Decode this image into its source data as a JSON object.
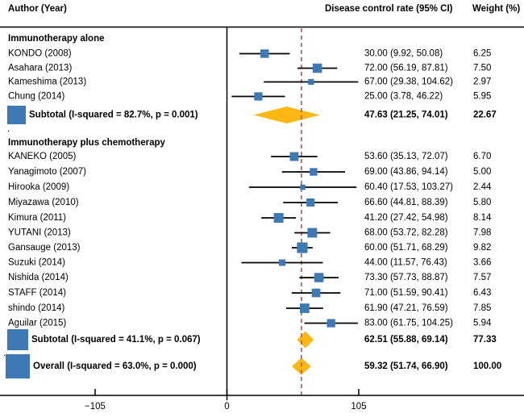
{
  "header": {
    "author": "Author (Year)",
    "effect": "Disease control rate (95% CI)",
    "weight": "Weight (%)"
  },
  "axis": {
    "tick_labels": [
      "−105",
      "0",
      "105"
    ],
    "tick_values": [
      -105,
      0,
      105
    ]
  },
  "colors": {
    "marker_blue": "#3d7ab5",
    "diamond_orange": "#fdb713",
    "reference_line_red": "#b65653",
    "line_black": "#000000"
  },
  "chart_data": {
    "type": "forest_plot",
    "effect_measure": "Disease control rate (95% CI)",
    "x_ticks": [
      -105,
      0,
      105
    ],
    "xlim_ticks": [
      -105,
      105
    ],
    "null_line_value": 0,
    "reference_line_value": 59.32,
    "legend_position": "none",
    "grid": false,
    "groups": [
      {
        "heading": "Immunotherapy alone",
        "separator": ".",
        "studies": [
          {
            "label": "KONDO (2008)",
            "effect": 30.0,
            "ci_low": 9.92,
            "ci_high": 50.08,
            "display": "30.00 (9.92, 50.08)",
            "weight": 6.25,
            "weight_display": "6.25"
          },
          {
            "label": "Asahara (2013)",
            "effect": 72.0,
            "ci_low": 56.19,
            "ci_high": 87.81,
            "display": "72.00 (56.19, 87.81)",
            "weight": 7.5,
            "weight_display": "7.50"
          },
          {
            "label": "Kameshima (2013)",
            "effect": 67.0,
            "ci_low": 29.38,
            "ci_high": 104.62,
            "display": "67.00 (29.38, 104.62)",
            "weight": 2.97,
            "weight_display": "2.97"
          },
          {
            "label": "Chung (2014)",
            "effect": 25.0,
            "ci_low": 3.78,
            "ci_high": 46.22,
            "display": "25.00 (3.78, 46.22)",
            "weight": 5.95,
            "weight_display": "5.95"
          }
        ],
        "subtotal": {
          "label": "Subtotal  (I-squared = 82.7%, p = 0.001)",
          "effect": 47.63,
          "ci_low": 21.25,
          "ci_high": 74.01,
          "display": "47.63 (21.25, 74.01)",
          "weight": 22.67,
          "weight_display": "22.67"
        }
      },
      {
        "heading": "Immunotherapy plus chemotherapy",
        "separator": ".",
        "studies": [
          {
            "label": "KANEKO (2005)",
            "effect": 53.6,
            "ci_low": 35.13,
            "ci_high": 72.07,
            "display": "53.60 (35.13, 72.07)",
            "weight": 6.7,
            "weight_display": "6.70"
          },
          {
            "label": "Yanagimoto (2007)",
            "effect": 69.0,
            "ci_low": 43.86,
            "ci_high": 94.14,
            "display": "69.00 (43.86, 94.14)",
            "weight": 5.0,
            "weight_display": "5.00"
          },
          {
            "label": "Hirooka (2009)",
            "effect": 60.4,
            "ci_low": 17.53,
            "ci_high": 103.27,
            "display": "60.40 (17.53, 103.27)",
            "weight": 2.44,
            "weight_display": "2.44"
          },
          {
            "label": "Miyazawa (2010)",
            "effect": 66.6,
            "ci_low": 44.81,
            "ci_high": 88.39,
            "display": "66.60 (44.81, 88.39)",
            "weight": 5.8,
            "weight_display": "5.80"
          },
          {
            "label": "Kimura (2011)",
            "effect": 41.2,
            "ci_low": 27.42,
            "ci_high": 54.98,
            "display": "41.20 (27.42, 54.98)",
            "weight": 8.14,
            "weight_display": "8.14"
          },
          {
            "label": "YUTANI (2013)",
            "effect": 68.0,
            "ci_low": 53.72,
            "ci_high": 82.28,
            "display": "68.00 (53.72, 82.28)",
            "weight": 7.98,
            "weight_display": "7.98"
          },
          {
            "label": "Gansauge (2013)",
            "effect": 60.0,
            "ci_low": 51.71,
            "ci_high": 68.29,
            "display": "60.00 (51.71, 68.29)",
            "weight": 9.82,
            "weight_display": "9.82"
          },
          {
            "label": "Suzuki (2014)",
            "effect": 44.0,
            "ci_low": 11.57,
            "ci_high": 76.43,
            "display": "44.00 (11.57, 76.43)",
            "weight": 3.66,
            "weight_display": "3.66"
          },
          {
            "label": "Nishida (2014)",
            "effect": 73.3,
            "ci_low": 57.73,
            "ci_high": 88.87,
            "display": "73.30 (57.73, 88.87)",
            "weight": 7.57,
            "weight_display": "7.57"
          },
          {
            "label": "STAFF (2014)",
            "effect": 71.0,
            "ci_low": 51.59,
            "ci_high": 90.41,
            "display": "71.00 (51.59, 90.41)",
            "weight": 6.43,
            "weight_display": "6.43"
          },
          {
            "label": "shindo (2014)",
            "effect": 61.9,
            "ci_low": 47.21,
            "ci_high": 76.59,
            "display": "61.90 (47.21, 76.59)",
            "weight": 7.85,
            "weight_display": "7.85"
          },
          {
            "label": "Aguilar (2015)",
            "effect": 83.0,
            "ci_low": 61.75,
            "ci_high": 104.25,
            "display": "83.00 (61.75, 104.25)",
            "weight": 5.94,
            "weight_display": "5.94"
          }
        ],
        "subtotal": {
          "label": "Subtotal  (I-squared = 41.1%, p = 0.067)",
          "effect": 62.51,
          "ci_low": 55.88,
          "ci_high": 69.14,
          "display": "62.51 (55.88, 69.14)",
          "weight": 77.33,
          "weight_display": "77.33"
        }
      }
    ],
    "overall": {
      "label": "Overall  (I-squared = 63.0%, p = 0.000)",
      "effect": 59.32,
      "ci_low": 51.74,
      "ci_high": 66.9,
      "display": "59.32 (51.74, 66.90)",
      "weight": 100.0,
      "weight_display": "100.00"
    }
  }
}
